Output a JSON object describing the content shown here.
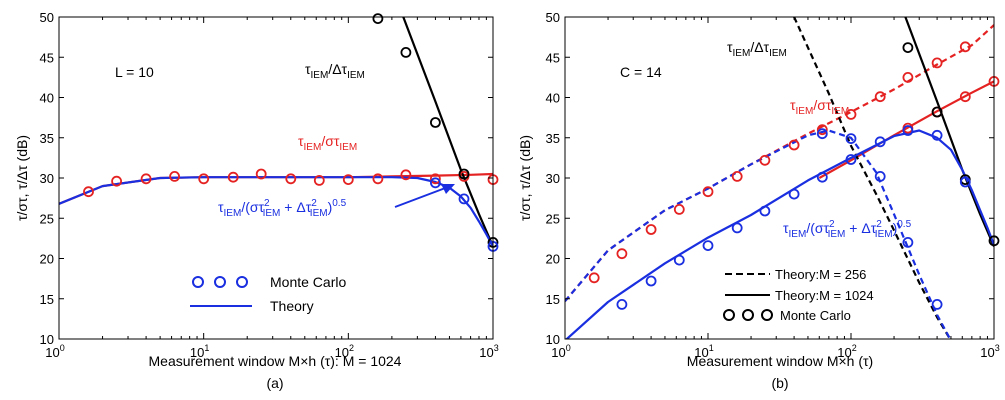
{
  "chart_data": [
    {
      "type": "line",
      "panel_label": "(a)",
      "xlabel": "Measurement window M×h (τ): M = 1024",
      "ylabel": "τ/στ, τ/Δτ (dB)",
      "xscale": "log",
      "xlim": [
        1,
        1000
      ],
      "ylim": [
        10,
        50
      ],
      "xticks": [
        1,
        10,
        100,
        1000
      ],
      "xtick_labels": [
        [
          "10",
          "0"
        ],
        [
          "10",
          "1"
        ],
        [
          "10",
          "2"
        ],
        [
          "10",
          "3"
        ]
      ],
      "yticks": [
        10,
        15,
        20,
        25,
        30,
        35,
        40,
        45,
        50
      ],
      "annotation": "L = 10",
      "series": [
        {
          "name": "τIEM/στIEM",
          "role": "theory",
          "color": "#e52222",
          "x": [
            1,
            2,
            5,
            10,
            20,
            50,
            100,
            200,
            400,
            700,
            1000
          ],
          "y": [
            26.8,
            29.0,
            30.0,
            30.1,
            30.1,
            30.1,
            30.1,
            30.2,
            30.3,
            30.4,
            30.5
          ]
        },
        {
          "name": "τIEM/στIEM",
          "role": "monte_carlo",
          "color": "#e52222",
          "x": [
            1.6,
            2.5,
            4,
            6.3,
            10,
            16,
            25,
            40,
            63,
            100,
            160,
            250,
            400,
            630,
            1000
          ],
          "y": [
            28.3,
            29.6,
            29.9,
            30.2,
            29.9,
            30.1,
            30.5,
            29.9,
            29.7,
            29.8,
            29.9,
            30.4,
            29.9,
            30.2,
            29.8
          ]
        },
        {
          "name": "τIEM/ΔτIEM",
          "role": "theory",
          "color": "#000000",
          "x": [
            240,
            400,
            600,
            800,
            1000
          ],
          "y": [
            50,
            39.5,
            31.0,
            25.5,
            21.5
          ]
        },
        {
          "name": "τIEM/ΔτIEM",
          "role": "monte_carlo",
          "color": "#000000",
          "x": [
            160,
            250,
            400,
            630,
            1000
          ],
          "y": [
            49.8,
            45.6,
            36.9,
            30.5,
            22.0
          ]
        },
        {
          "name": "τIEM/(στ²IEM + Δτ²IEM)^0.5",
          "role": "theory",
          "color": "#1a2fe0",
          "x": [
            1,
            2,
            5,
            10,
            20,
            50,
            100,
            200,
            300,
            400,
            500,
            600,
            700,
            800,
            900,
            1000
          ],
          "y": [
            26.8,
            29.0,
            30.0,
            30.1,
            30.1,
            30.1,
            30.1,
            30.1,
            30.0,
            29.5,
            28.8,
            27.7,
            26.3,
            24.6,
            23.0,
            21.5
          ]
        },
        {
          "name": "τIEM/(στ²IEM + Δτ²IEM)^0.5",
          "role": "monte_carlo",
          "color": "#1a2fe0",
          "x": [
            400,
            630,
            1000
          ],
          "y": [
            29.4,
            27.4,
            21.5
          ]
        }
      ],
      "labels": {
        "red": {
          "main": "τ",
          "sub1": "IEM",
          "mid": "/στ",
          "sub2": "IEM"
        },
        "black": {
          "main": "τ",
          "sub1": "IEM",
          "mid": "/Δτ",
          "sub2": "IEM"
        },
        "blue": {
          "a": "τ",
          "b": "IEM",
          "c": "/(στ",
          "d": "2",
          "e": "IEM",
          "f": " + Δτ",
          "g": "2",
          "h": "IEM",
          "i": ")",
          "j": "0.5"
        }
      },
      "legend": {
        "position": "bottom-center",
        "entries": [
          {
            "label": "Monte Carlo",
            "style": "circles",
            "color": "#1a2fe0"
          },
          {
            "label": "Theory",
            "style": "solid",
            "color": "#1a2fe0"
          }
        ]
      }
    },
    {
      "type": "line",
      "panel_label": "(b)",
      "xlabel": "Measurement window M×h (τ)",
      "ylabel": "τ/στ, τ/Δτ (dB)",
      "xscale": "log",
      "xlim": [
        1,
        1000
      ],
      "ylim": [
        10,
        50
      ],
      "xticks": [
        1,
        10,
        100,
        1000
      ],
      "xtick_labels": [
        [
          "10",
          "0"
        ],
        [
          "10",
          "1"
        ],
        [
          "10",
          "2"
        ],
        [
          "10",
          "3"
        ]
      ],
      "yticks": [
        10,
        15,
        20,
        25,
        30,
        35,
        40,
        45,
        50
      ],
      "annotation": "C = 14",
      "series": [
        {
          "name": "τIEM/στIEM, M = 1024",
          "role": "theory",
          "color": "#e52222",
          "dash": "solid",
          "x": [
            60,
            100,
            200,
            400,
            700,
            1000
          ],
          "y": [
            30,
            32.2,
            35.3,
            38.3,
            40.6,
            42.0
          ]
        },
        {
          "name": "τIEM/στIEM, M = 1024",
          "role": "monte_carlo",
          "color": "#e52222",
          "x": [
            250,
            400,
            630,
            1000
          ],
          "y": [
            36.2,
            38.2,
            40.1,
            42.0
          ]
        },
        {
          "name": "τIEM/στIEM, M = 256",
          "role": "theory",
          "color": "#e52222",
          "dash": "dashed",
          "x": [
            1,
            2,
            5,
            10,
            20,
            50,
            100,
            200,
            400,
            700,
            1000
          ],
          "y": [
            14.7,
            21.0,
            26.0,
            28.7,
            31.7,
            35.5,
            38.2,
            41.0,
            44.1,
            46.5,
            49.0
          ]
        },
        {
          "name": "τIEM/στIEM, M = 256",
          "role": "monte_carlo",
          "color": "#e52222",
          "x": [
            1.6,
            2.5,
            4,
            6.3,
            10,
            16,
            25,
            40,
            63,
            100,
            160,
            250,
            400,
            630
          ],
          "y": [
            17.6,
            20.6,
            23.6,
            26.1,
            28.3,
            30.2,
            32.2,
            34.1,
            36.0,
            37.9,
            40.1,
            42.5,
            44.3,
            46.3
          ]
        },
        {
          "name": "τIEM/ΔτIEM, M = 256",
          "role": "theory",
          "color": "#000000",
          "dash": "dashed",
          "x": [
            40,
            70,
            100,
            150,
            200,
            300,
            400,
            500
          ],
          "y": [
            50,
            40.5,
            34.0,
            28.0,
            23.5,
            17.0,
            12.7,
            9.8
          ]
        },
        {
          "name": "τIEM/ΔτIEM, M = 1024",
          "role": "theory",
          "color": "#000000",
          "dash": "solid",
          "x": [
            240,
            400,
            600,
            800,
            1000
          ],
          "y": [
            50,
            39.5,
            31.0,
            25.5,
            21.5
          ]
        },
        {
          "name": "τIEM/ΔτIEM, M = 1024",
          "role": "monte_carlo",
          "color": "#000000",
          "x": [
            250,
            400,
            630,
            1000
          ],
          "y": [
            46.2,
            38.2,
            29.8,
            22.2
          ]
        },
        {
          "name": "τIEM/(στ²IEM + Δτ²IEM)^0.5, M = 256",
          "role": "theory",
          "color": "#1a2fe0",
          "dash": "dashed",
          "x": [
            1,
            2,
            5,
            10,
            20,
            50,
            70,
            100,
            150,
            200,
            300,
            400,
            500
          ],
          "y": [
            14.7,
            21.0,
            26.0,
            28.7,
            31.7,
            35.3,
            35.9,
            35.0,
            30.7,
            25.5,
            18.0,
            13.0,
            9.8
          ]
        },
        {
          "name": "τIEM/(στ²IEM + Δτ²IEM)^0.5, M = 256",
          "role": "monte_carlo",
          "color": "#1a2fe0",
          "x": [
            63,
            100,
            160,
            250,
            400
          ],
          "y": [
            35.5,
            34.9,
            30.2,
            22.0,
            14.3
          ]
        },
        {
          "name": "τIEM/(στ²IEM + Δτ²IEM)^0.5, M = 1024",
          "role": "theory",
          "color": "#1a2fe0",
          "dash": "solid",
          "x": [
            1,
            2,
            5,
            10,
            20,
            50,
            100,
            200,
            300,
            400,
            500,
            600,
            700,
            800,
            900,
            1000
          ],
          "y": [
            9.8,
            14.6,
            19.4,
            22.6,
            25.4,
            29.7,
            32.5,
            35.2,
            35.9,
            35.0,
            33.5,
            31.0,
            28.5,
            26.0,
            23.8,
            21.7
          ]
        },
        {
          "name": "τIEM/(στ²IEM + Δτ²IEM)^0.5, M = 1024",
          "role": "monte_carlo",
          "color": "#1a2fe0",
          "x": [
            2.5,
            4,
            6.3,
            10,
            16,
            25,
            40,
            63,
            100,
            160,
            250,
            400,
            630
          ],
          "y": [
            14.3,
            17.2,
            19.8,
            21.6,
            23.8,
            25.9,
            28.0,
            30.1,
            32.3,
            34.5,
            35.9,
            35.3,
            29.5
          ]
        }
      ],
      "labels": {
        "red": {
          "main": "τ",
          "sub1": "IEM",
          "mid": "/στ",
          "sub2": "IEM"
        },
        "black": {
          "main": "τ",
          "sub1": "IEM",
          "mid": "/Δτ",
          "sub2": "IEM"
        },
        "blue": {
          "a": "τ",
          "b": "IEM",
          "c": "/(στ",
          "d": "2",
          "e": "IEM",
          "f": " + Δτ",
          "g": "2",
          "h": "IEM",
          "i": ")",
          "j": "0.5"
        }
      },
      "legend": {
        "position": "bottom-right",
        "entries": [
          {
            "label": "Theory:M = 256",
            "style": "dashed",
            "color": "#000000"
          },
          {
            "label": "Theory:M = 1024",
            "style": "solid",
            "color": "#000000"
          },
          {
            "label": "Monte Carlo",
            "style": "circles",
            "color": "#000000"
          }
        ]
      }
    }
  ]
}
